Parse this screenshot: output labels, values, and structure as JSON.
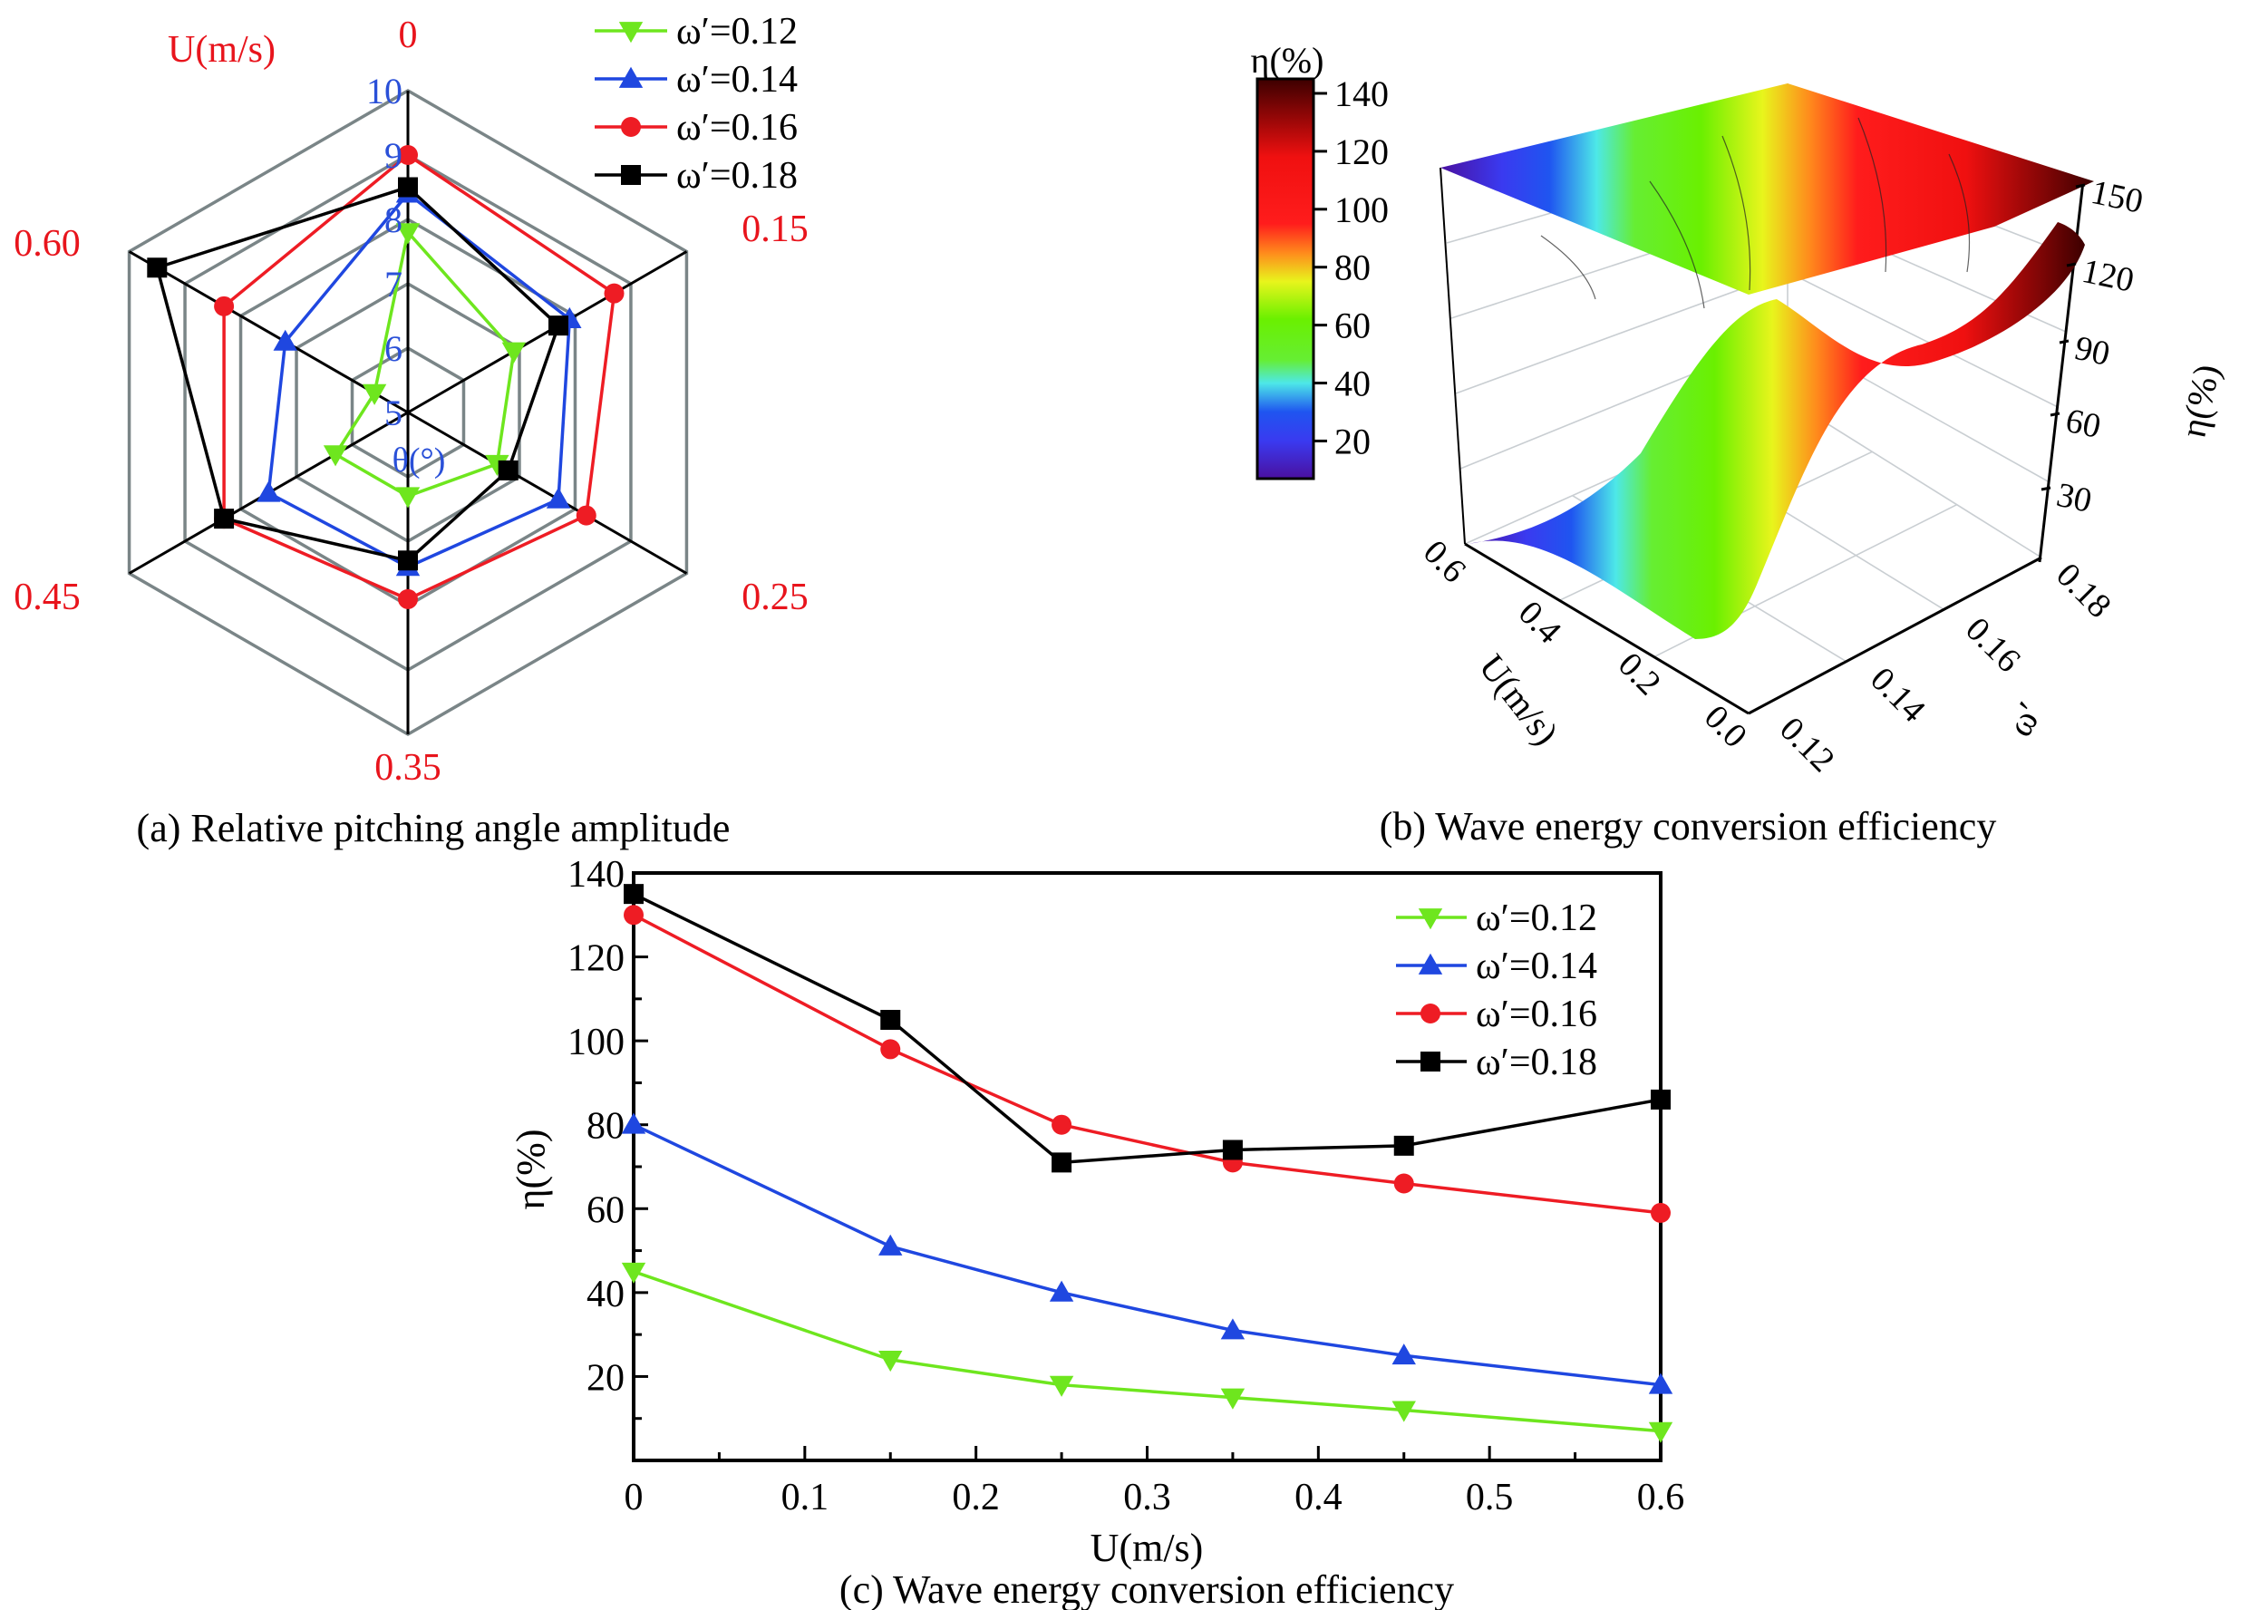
{
  "figure": {
    "captions": {
      "a": "(a) Relative pitching angle amplitude",
      "b": "(b) Wave energy conversion efficiency",
      "c": "(c) Wave energy conversion efficiency"
    }
  },
  "series_style": [
    {
      "name": "ω′=0.12",
      "color": "#6ee61e",
      "marker": "triangle-down"
    },
    {
      "name": "ω′=0.14",
      "color": "#1f47e0",
      "marker": "triangle-up"
    },
    {
      "name": "ω′=0.16",
      "color": "#ee1c24",
      "marker": "circle"
    },
    {
      "name": "ω′=0.18",
      "color": "#000000",
      "marker": "square"
    }
  ],
  "chart_data": [
    {
      "id": "a",
      "type": "radar",
      "title": "(a) Relative pitching angle amplitude",
      "axis_title": "U(m/s)",
      "radial_title": "θ(°)",
      "categories": [
        "0",
        "0.15",
        "0.25",
        "0.35",
        "0.45",
        "0.60"
      ],
      "radial_ticks": [
        "5",
        "6",
        "7",
        "8",
        "9",
        "10"
      ],
      "rlim": [
        5,
        10
      ],
      "legend": [
        "ω′=0.12",
        "ω′=0.14",
        "ω′=0.16",
        "ω′=0.18"
      ],
      "legend_position": "top-right",
      "series": [
        {
          "name": "ω′=0.12",
          "values": [
            7.8,
            6.9,
            6.6,
            6.3,
            6.3,
            5.6
          ]
        },
        {
          "name": "ω′=0.14",
          "values": [
            8.4,
            7.9,
            7.7,
            7.4,
            7.5,
            7.2
          ]
        },
        {
          "name": "ω′=0.16",
          "values": [
            9.0,
            8.7,
            8.2,
            7.9,
            8.3,
            8.3
          ]
        },
        {
          "name": "ω′=0.18",
          "values": [
            8.5,
            7.7,
            6.8,
            7.3,
            8.3,
            9.5
          ]
        }
      ]
    },
    {
      "id": "b",
      "type": "surface3d",
      "title": "(b) Wave energy conversion efficiency",
      "xlabel": "U(m/s)",
      "ylabel": "ω′",
      "zlabel": "η(%)",
      "x_ticks": [
        "0.0",
        "0.2",
        "0.4",
        "0.6"
      ],
      "y_ticks": [
        "0.12",
        "0.14",
        "0.16",
        "0.18"
      ],
      "z_ticks": [
        "30",
        "60",
        "90",
        "120",
        "150"
      ],
      "colorbar": {
        "label": "η(%)",
        "ticks": [
          "20",
          "40",
          "60",
          "80",
          "100",
          "120",
          "140"
        ],
        "range": [
          7,
          145
        ],
        "stops": [
          {
            "v": 7,
            "color": "#4a10a0"
          },
          {
            "v": 20,
            "color": "#3a3af0"
          },
          {
            "v": 30,
            "color": "#1f55f0"
          },
          {
            "v": 40,
            "color": "#4de8e8"
          },
          {
            "v": 48,
            "color": "#66ee33"
          },
          {
            "v": 62,
            "color": "#6af000"
          },
          {
            "v": 75,
            "color": "#e8f51c"
          },
          {
            "v": 85,
            "color": "#ff8a1c"
          },
          {
            "v": 95,
            "color": "#ff1c1c"
          },
          {
            "v": 118,
            "color": "#f01010"
          },
          {
            "v": 130,
            "color": "#a00808"
          },
          {
            "v": 145,
            "color": "#3c0000"
          }
        ]
      },
      "surface_bands": [
        "violet",
        "blue",
        "cyan",
        "green",
        "yellow",
        "orange",
        "red",
        "dark-red"
      ]
    },
    {
      "id": "c",
      "type": "line",
      "title": "(c) Wave energy conversion efficiency",
      "xlabel": "U(m/s)",
      "ylabel": "η(%)",
      "xlim": [
        0,
        0.6
      ],
      "ylim": [
        0,
        140
      ],
      "x_ticks": [
        "0",
        "0.1",
        "0.2",
        "0.3",
        "0.4",
        "0.5",
        "0.6"
      ],
      "y_ticks": [
        "20",
        "40",
        "60",
        "80",
        "100",
        "120",
        "140"
      ],
      "x": [
        0,
        0.15,
        0.25,
        0.35,
        0.45,
        0.6
      ],
      "grid": false,
      "legend_position": "top-right",
      "series": [
        {
          "name": "ω′=0.12",
          "values": [
            45,
            24,
            18,
            15,
            12,
            7
          ]
        },
        {
          "name": "ω′=0.14",
          "values": [
            80,
            51,
            40,
            31,
            25,
            18
          ]
        },
        {
          "name": "ω′=0.16",
          "values": [
            130,
            98,
            80,
            71,
            66,
            59
          ]
        },
        {
          "name": "ω′=0.18",
          "values": [
            135,
            105,
            71,
            74,
            75,
            86
          ]
        }
      ]
    }
  ]
}
